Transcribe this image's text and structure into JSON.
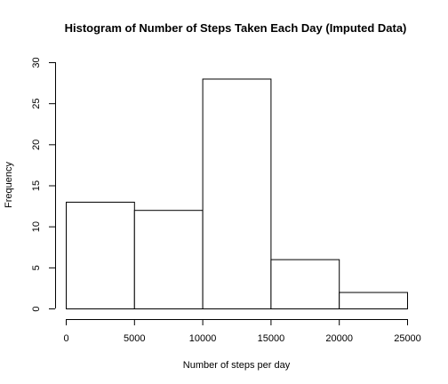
{
  "chart_data": {
    "type": "bar",
    "title": "Histogram of Number of Steps Taken Each Day (Imputed Data)",
    "xlabel": "Number of steps per day",
    "ylabel": "Frequency",
    "bins": [
      {
        "from": 0,
        "to": 5000,
        "count": 13
      },
      {
        "from": 5000,
        "to": 10000,
        "count": 12
      },
      {
        "from": 10000,
        "to": 15000,
        "count": 28
      },
      {
        "from": 15000,
        "to": 20000,
        "count": 6
      },
      {
        "from": 20000,
        "to": 25000,
        "count": 2
      }
    ],
    "xlim": [
      0,
      25000
    ],
    "ylim": [
      0,
      30
    ],
    "xticks": [
      0,
      5000,
      10000,
      15000,
      20000,
      25000
    ],
    "yticks": [
      0,
      5,
      10,
      15,
      20,
      25,
      30
    ],
    "grid": false,
    "bar_fill": "#ffffff",
    "bar_stroke": "#000000"
  }
}
